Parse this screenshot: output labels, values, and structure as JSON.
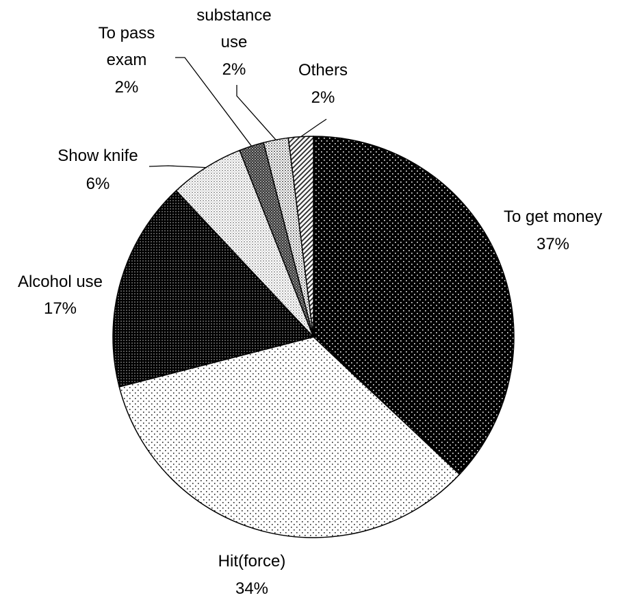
{
  "chart_data": {
    "type": "pie",
    "title": "",
    "slices": [
      {
        "label": "To get money",
        "value": 37,
        "pct_label": "37%",
        "pattern": "dark-dots"
      },
      {
        "label": "Hit(force)",
        "value": 34,
        "pct_label": "34%",
        "pattern": "light-dots"
      },
      {
        "label": "Alcohol use",
        "value": 17,
        "pct_label": "17%",
        "pattern": "dark-check"
      },
      {
        "label": "Show knife",
        "value": 6,
        "pct_label": "6%",
        "pattern": "light-check"
      },
      {
        "label": "To pass exam",
        "value": 2,
        "pct_label": "2%",
        "pattern": "grey-check"
      },
      {
        "label": "substance use",
        "value": 2,
        "pct_label": "2%",
        "pattern": "light-grey-check"
      },
      {
        "label": "Others",
        "value": 2,
        "pct_label": "2%",
        "pattern": "diagonal-hatch"
      }
    ],
    "label_lines": [
      {
        "label": "To pass",
        "line": 0
      },
      {
        "label": "exam",
        "line": 1
      }
    ],
    "display_labels": {
      "to_get_money": [
        "To get money",
        "37%"
      ],
      "hit_force": [
        "Hit(force)",
        "34%"
      ],
      "alcohol_use": [
        "Alcohol use",
        "17%"
      ],
      "show_knife": [
        "Show knife",
        "6%"
      ],
      "to_pass_exam": [
        "To pass",
        "exam",
        "2%"
      ],
      "substance_use": [
        "substance",
        "use",
        "2%"
      ],
      "others": [
        "Others",
        "2%"
      ]
    },
    "legend": "none",
    "colors": {
      "stroke": "#000000",
      "background": "#ffffff"
    }
  }
}
